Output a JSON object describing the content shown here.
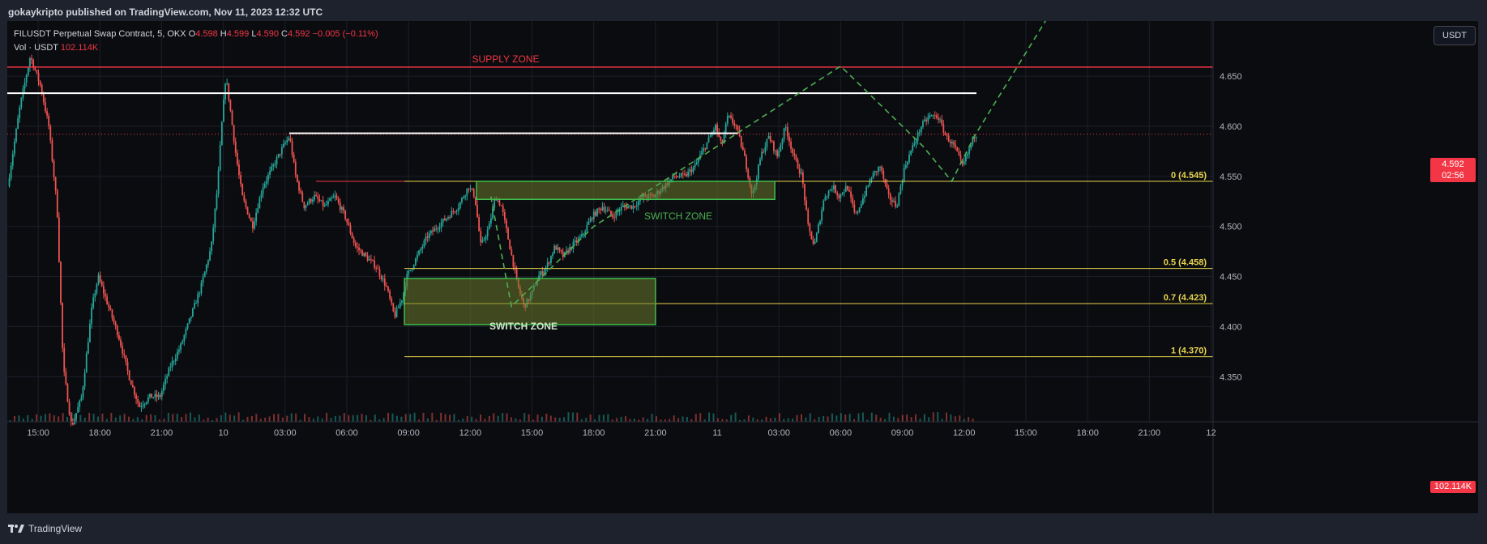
{
  "header": {
    "publisher": "gokaykripto published on TradingView.com, Nov 11, 2023 12:32 UTC"
  },
  "legend": {
    "symbol": "FILUSDT Perpetual Swap Contract, 5, OKX",
    "open_label": "O",
    "open": "4.598",
    "high_label": "H",
    "high": "4.599",
    "low_label": "L",
    "low": "4.590",
    "close_label": "C",
    "close": "4.592",
    "change": "−0.005 (−0.11%)",
    "volume_label": "Vol · USDT",
    "volume": "102.114K"
  },
  "currency_button": "USDT",
  "current_price": {
    "value": "4.592",
    "countdown": "02:56"
  },
  "volume_badge": "102.114K",
  "footer": {
    "brand": "TradingView"
  },
  "colors": {
    "up": "#26a69a",
    "down": "#ef5350",
    "supply": "#f23645",
    "fib": "#e8d44d",
    "zone_fill": "#6b7a2a",
    "zone_border": "#3fbf4f",
    "projection": "#4caf50"
  },
  "chart_data": {
    "type": "line",
    "title": "",
    "y_ticks": [
      4.35,
      4.4,
      4.45,
      4.5,
      4.55,
      4.6,
      4.65
    ],
    "ylim": [
      4.305,
      4.705
    ],
    "x_ticks": [
      {
        "label": "15:00",
        "t": 0
      },
      {
        "label": "18:00",
        "t": 3
      },
      {
        "label": "21:00",
        "t": 6
      },
      {
        "label": "10",
        "t": 9
      },
      {
        "label": "03:00",
        "t": 12
      },
      {
        "label": "06:00",
        "t": 15
      },
      {
        "label": "09:00",
        "t": 18
      },
      {
        "label": "12:00",
        "t": 21
      },
      {
        "label": "15:00",
        "t": 24
      },
      {
        "label": "18:00",
        "t": 27
      },
      {
        "label": "21:00",
        "t": 30
      },
      {
        "label": "11",
        "t": 33
      },
      {
        "label": "03:00",
        "t": 36
      },
      {
        "label": "06:00",
        "t": 39
      },
      {
        "label": "09:00",
        "t": 42
      },
      {
        "label": "12:00",
        "t": 45
      },
      {
        "label": "15:00",
        "t": 48
      },
      {
        "label": "18:00",
        "t": 51
      },
      {
        "label": "21:00",
        "t": 54
      },
      {
        "label": "12",
        "t": 57
      }
    ],
    "xlim": [
      -1.5,
      57.1
    ],
    "price_path": [
      [
        -1.4,
        4.54
      ],
      [
        -0.8,
        4.62
      ],
      [
        -0.3,
        4.67
      ],
      [
        0.2,
        4.64
      ],
      [
        0.6,
        4.6
      ],
      [
        1.0,
        4.52
      ],
      [
        1.3,
        4.36
      ],
      [
        1.7,
        4.3
      ],
      [
        2.2,
        4.33
      ],
      [
        2.7,
        4.42
      ],
      [
        3.0,
        4.45
      ],
      [
        3.5,
        4.42
      ],
      [
        4.0,
        4.39
      ],
      [
        4.5,
        4.35
      ],
      [
        5.0,
        4.32
      ],
      [
        5.5,
        4.33
      ],
      [
        6.0,
        4.33
      ],
      [
        6.5,
        4.36
      ],
      [
        7.0,
        4.38
      ],
      [
        7.5,
        4.41
      ],
      [
        8.0,
        4.44
      ],
      [
        8.5,
        4.48
      ],
      [
        8.8,
        4.54
      ],
      [
        9.0,
        4.6
      ],
      [
        9.2,
        4.65
      ],
      [
        9.4,
        4.62
      ],
      [
        9.7,
        4.57
      ],
      [
        10.0,
        4.53
      ],
      [
        10.5,
        4.5
      ],
      [
        11.0,
        4.54
      ],
      [
        11.5,
        4.56
      ],
      [
        12.0,
        4.58
      ],
      [
        12.3,
        4.59
      ],
      [
        12.6,
        4.55
      ],
      [
        13.0,
        4.52
      ],
      [
        13.5,
        4.53
      ],
      [
        14.0,
        4.52
      ],
      [
        14.5,
        4.53
      ],
      [
        15.0,
        4.51
      ],
      [
        15.5,
        4.48
      ],
      [
        16.0,
        4.47
      ],
      [
        16.5,
        4.46
      ],
      [
        17.0,
        4.44
      ],
      [
        17.4,
        4.41
      ],
      [
        17.8,
        4.43
      ],
      [
        18.0,
        4.45
      ],
      [
        18.5,
        4.47
      ],
      [
        19.0,
        4.49
      ],
      [
        19.5,
        4.5
      ],
      [
        20.0,
        4.51
      ],
      [
        20.5,
        4.52
      ],
      [
        21.0,
        4.54
      ],
      [
        21.3,
        4.53
      ],
      [
        21.6,
        4.48
      ],
      [
        22.0,
        4.5
      ],
      [
        22.3,
        4.53
      ],
      [
        22.6,
        4.52
      ],
      [
        23.0,
        4.48
      ],
      [
        23.4,
        4.44
      ],
      [
        23.7,
        4.42
      ],
      [
        24.0,
        4.43
      ],
      [
        24.4,
        4.45
      ],
      [
        24.8,
        4.46
      ],
      [
        25.2,
        4.48
      ],
      [
        25.6,
        4.47
      ],
      [
        26.0,
        4.48
      ],
      [
        26.5,
        4.49
      ],
      [
        27.0,
        4.51
      ],
      [
        27.5,
        4.52
      ],
      [
        28.0,
        4.51
      ],
      [
        28.5,
        4.52
      ],
      [
        29.0,
        4.52
      ],
      [
        29.5,
        4.53
      ],
      [
        30.0,
        4.53
      ],
      [
        30.5,
        4.54
      ],
      [
        31.0,
        4.55
      ],
      [
        31.5,
        4.55
      ],
      [
        32.0,
        4.56
      ],
      [
        32.5,
        4.58
      ],
      [
        33.0,
        4.6
      ],
      [
        33.3,
        4.58
      ],
      [
        33.6,
        4.61
      ],
      [
        34.0,
        4.6
      ],
      [
        34.4,
        4.57
      ],
      [
        34.8,
        4.53
      ],
      [
        35.2,
        4.57
      ],
      [
        35.6,
        4.59
      ],
      [
        36.0,
        4.57
      ],
      [
        36.4,
        4.6
      ],
      [
        36.8,
        4.57
      ],
      [
        37.2,
        4.55
      ],
      [
        37.5,
        4.5
      ],
      [
        37.8,
        4.48
      ],
      [
        38.0,
        4.5
      ],
      [
        38.3,
        4.53
      ],
      [
        38.7,
        4.54
      ],
      [
        39.0,
        4.53
      ],
      [
        39.4,
        4.54
      ],
      [
        39.8,
        4.51
      ],
      [
        40.2,
        4.53
      ],
      [
        40.6,
        4.55
      ],
      [
        41.0,
        4.56
      ],
      [
        41.4,
        4.53
      ],
      [
        41.8,
        4.52
      ],
      [
        42.2,
        4.56
      ],
      [
        42.6,
        4.58
      ],
      [
        43.0,
        4.6
      ],
      [
        43.4,
        4.61
      ],
      [
        43.8,
        4.61
      ],
      [
        44.2,
        4.59
      ],
      [
        44.6,
        4.58
      ],
      [
        45.0,
        4.56
      ],
      [
        45.3,
        4.575
      ],
      [
        45.6,
        4.592
      ]
    ],
    "volume_bars": 220
  },
  "annotations": {
    "supply_zone_label": "SUPPLY ZONE",
    "switch_zone_label_1": "SWITCH ZONE",
    "switch_zone_label_2": "SWITCH ZONE",
    "supply_price": 4.659,
    "resistance_1": {
      "price": 4.633,
      "t_start": -1.5,
      "t_end": 45.6
    },
    "resistance_2": {
      "price": 4.593,
      "t_start": 12.2,
      "t_end": 34.0
    },
    "support_red": {
      "price": 4.545,
      "t_start": 13.5,
      "t_end": 17.8
    },
    "fib_levels": [
      {
        "label": "0 (4.545)",
        "price": 4.545
      },
      {
        "label": "0.5 (4.458)",
        "price": 4.458
      },
      {
        "label": "0.7 (4.423)",
        "price": 4.423
      },
      {
        "label": "1 (4.370)",
        "price": 4.37
      }
    ],
    "fib_t_start": 17.8,
    "zone_upper": {
      "t0": 21.3,
      "t1": 35.8,
      "p0": 4.545,
      "p1": 4.527
    },
    "zone_lower": {
      "t0": 17.8,
      "t1": 30.0,
      "p0": 4.448,
      "p1": 4.402
    },
    "projection_path": [
      [
        22.0,
        4.53
      ],
      [
        23.0,
        4.42
      ],
      [
        27.0,
        4.5
      ],
      [
        39.0,
        4.66
      ],
      [
        43.0,
        4.58
      ],
      [
        44.4,
        4.545
      ],
      [
        45.5,
        4.59
      ],
      [
        49.4,
        4.72
      ]
    ]
  }
}
